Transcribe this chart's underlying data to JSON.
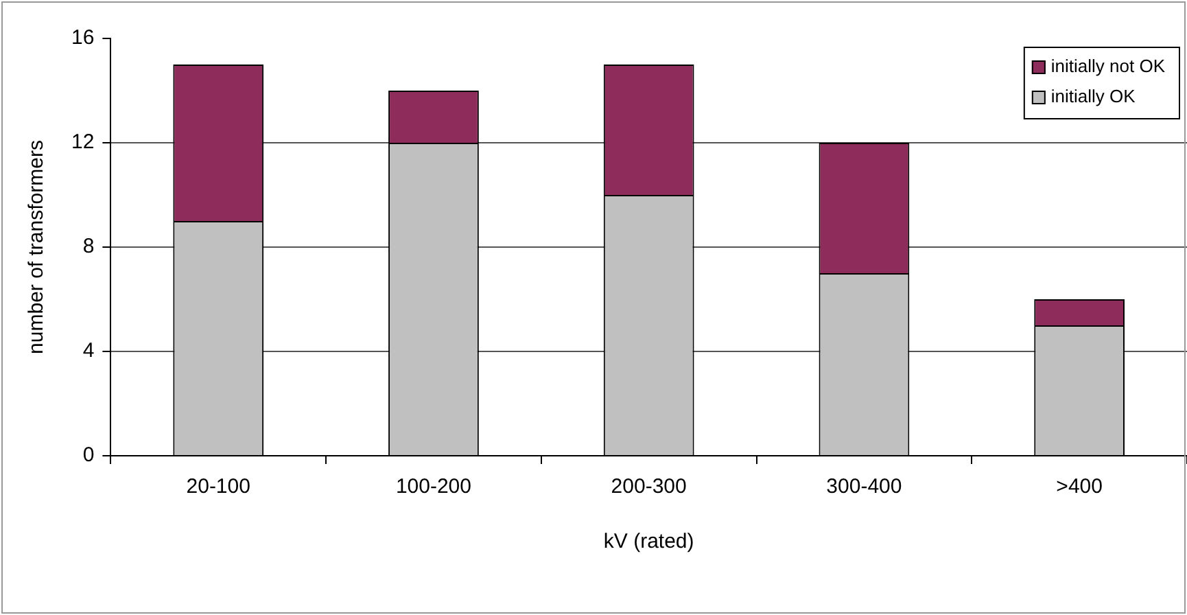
{
  "chart_data": {
    "type": "bar",
    "xlabel": "kV (rated)",
    "ylabel": "number of transformers",
    "categories": [
      "20-100",
      "100-200",
      "200-300",
      "300-400",
      ">400"
    ],
    "stacked": true,
    "series": [
      {
        "name": "initially OK",
        "color": "#c0c0c0",
        "values": [
          9,
          12,
          10,
          7,
          5
        ]
      },
      {
        "name": "initially not OK",
        "color": "#8e2d5c",
        "values": [
          6,
          2,
          5,
          5,
          1
        ]
      }
    ],
    "ylim": [
      0,
      16
    ],
    "yticks": [
      0,
      4,
      8,
      12,
      16
    ],
    "grid": "y",
    "legend": "top right"
  }
}
